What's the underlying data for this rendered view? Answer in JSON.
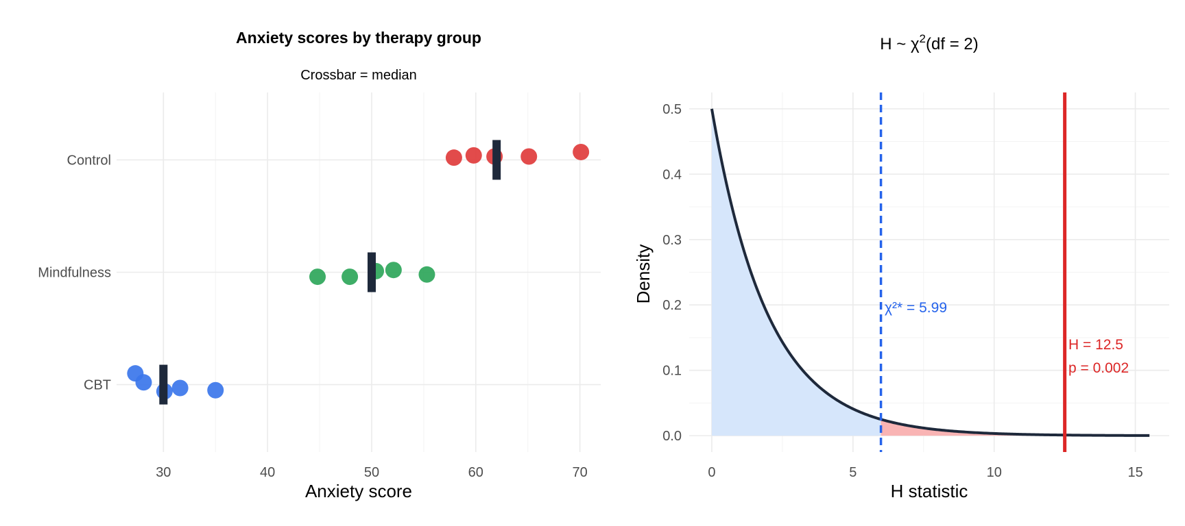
{
  "chart_data": [
    {
      "type": "scatter",
      "title": "Anxiety scores by therapy group",
      "subtitle": "Crossbar = median",
      "xlabel": "Anxiety score",
      "ylabel": "",
      "xlim": [
        25.5,
        72
      ],
      "x_ticks": [
        30,
        40,
        50,
        60,
        70
      ],
      "categories": [
        "CBT",
        "Mindfulness",
        "Control"
      ],
      "grid": true,
      "crossbar": "median",
      "series": [
        {
          "category": "CBT",
          "color": "#3b76ea",
          "median": 30,
          "points": [
            {
              "x": 27.3,
              "j": 0.1
            },
            {
              "x": 28.1,
              "j": 0.02
            },
            {
              "x": 30.1,
              "j": -0.06
            },
            {
              "x": 31.6,
              "j": -0.03
            },
            {
              "x": 35.0,
              "j": -0.05
            }
          ]
        },
        {
          "category": "Mindfulness",
          "color": "#2ea65a",
          "median": 50,
          "points": [
            {
              "x": 44.8,
              "j": -0.04
            },
            {
              "x": 47.9,
              "j": -0.04
            },
            {
              "x": 50.4,
              "j": 0.01
            },
            {
              "x": 52.1,
              "j": 0.02
            },
            {
              "x": 55.3,
              "j": -0.02
            }
          ]
        },
        {
          "category": "Control",
          "color": "#e03c3c",
          "median": 62,
          "points": [
            {
              "x": 57.9,
              "j": 0.02
            },
            {
              "x": 59.8,
              "j": 0.04
            },
            {
              "x": 61.8,
              "j": 0.03
            },
            {
              "x": 65.1,
              "j": 0.03
            },
            {
              "x": 70.1,
              "j": 0.07
            }
          ]
        }
      ]
    },
    {
      "type": "area",
      "title_main": "H ~ χ",
      "title_sup": "2",
      "title_rest": "(df = 2)",
      "xlabel": "H statistic",
      "ylabel": "Density",
      "xlim": [
        -0.8,
        16.2
      ],
      "ylim": [
        -0.025,
        0.525
      ],
      "x_ticks": [
        0,
        5,
        10,
        15
      ],
      "y_ticks": [
        0.0,
        0.1,
        0.2,
        0.3,
        0.4,
        0.5
      ],
      "y_tick_labels": [
        "0.0",
        "0.1",
        "0.2",
        "0.3",
        "0.4",
        "0.5"
      ],
      "df": 2,
      "x_max": 15.5,
      "critical_value": 5.99,
      "critical_label": "χ²* = 5.99",
      "observed_H": 12.5,
      "observed_label": "H = 12.5",
      "p_label": "p = 0.002",
      "fill_below_color": "#d6e6fb",
      "fill_above_color": "#f9b4b4",
      "curve_color": "#1e293b",
      "critical_color": "#2563eb",
      "observed_color": "#dc2626"
    }
  ]
}
